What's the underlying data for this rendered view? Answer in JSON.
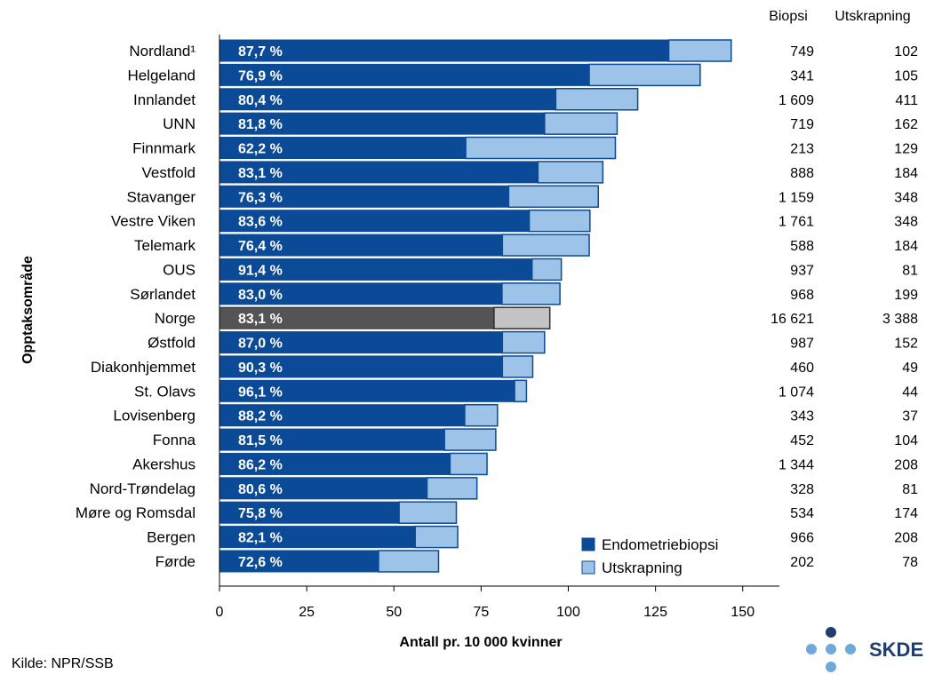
{
  "chart_data": {
    "type": "bar",
    "stacked": true,
    "orientation": "horizontal",
    "title": "",
    "xlabel": "Antall pr. 10 000 kvinner",
    "ylabel": "Opptaksområde",
    "xlim": [
      0,
      150
    ],
    "xticks": [
      0,
      25,
      50,
      75,
      100,
      125,
      150
    ],
    "grid": false,
    "categories": [
      "Nordland¹",
      "Helgeland",
      "Innlandet",
      "UNN",
      "Finnmark",
      "Vestfold",
      "Stavanger",
      "Vestre Viken",
      "Telemark",
      "OUS",
      "Sørlandet",
      "Norge",
      "Østfold",
      "Diakonhjemmet",
      "St. Olavs",
      "Lovisenberg",
      "Fonna",
      "Akershus",
      "Nord-Trøndelag",
      "Møre og Romsdal",
      "Bergen",
      "Førde"
    ],
    "highlight_category": "Norge",
    "series": [
      {
        "name": "Endometriebiopsi",
        "color": "#0a4a97",
        "highlight_color": "#545454",
        "values": [
          128.8,
          106.0,
          96.4,
          93.2,
          70.6,
          91.3,
          82.9,
          88.8,
          81.1,
          89.6,
          81.0,
          78.7,
          81.1,
          81.1,
          84.6,
          70.3,
          64.5,
          66.1,
          59.5,
          51.5,
          56.1,
          45.6
        ]
      },
      {
        "name": "Utskrapning",
        "color": "#9dc3e8",
        "highlight_color": "#c4c4c4",
        "values": [
          17.9,
          31.8,
          23.5,
          20.8,
          42.9,
          18.6,
          25.7,
          17.4,
          24.9,
          8.4,
          16.6,
          16.0,
          12.1,
          8.7,
          3.4,
          9.4,
          14.7,
          10.6,
          14.3,
          16.4,
          12.2,
          17.2
        ]
      }
    ],
    "data_labels": [
      "87,7 %",
      "76,9 %",
      "80,4 %",
      "81,8 %",
      "62,2 %",
      "83,1 %",
      "76,3 %",
      "83,6 %",
      "76,4 %",
      "91,4 %",
      "83,0 %",
      "83,1 %",
      "87,0 %",
      "90,3 %",
      "96,1 %",
      "88,2 %",
      "81,5 %",
      "86,2 %",
      "80,6 %",
      "75,8 %",
      "82,1 %",
      "72,6 %"
    ],
    "table": {
      "headers": [
        "Biopsi",
        "Utskrapning"
      ],
      "biopsi": [
        "749",
        "341",
        "1 609",
        "719",
        "213",
        "888",
        "1 159",
        "1 761",
        "588",
        "937",
        "968",
        "16 621",
        "987",
        "460",
        "1 074",
        "343",
        "452",
        "1 344",
        "328",
        "534",
        "966",
        "202"
      ],
      "utskrapning": [
        "102",
        "105",
        "411",
        "162",
        "129",
        "184",
        "348",
        "348",
        "184",
        "81",
        "199",
        "3 388",
        "152",
        "49",
        "44",
        "37",
        "104",
        "208",
        "81",
        "174",
        "208",
        "78"
      ]
    },
    "legend": {
      "position": "bottom-right",
      "entries": [
        "Endometriebiopsi",
        "Utskrapning"
      ]
    }
  },
  "source": "Kilde: NPR/SSB",
  "logo_text": "SKDE"
}
